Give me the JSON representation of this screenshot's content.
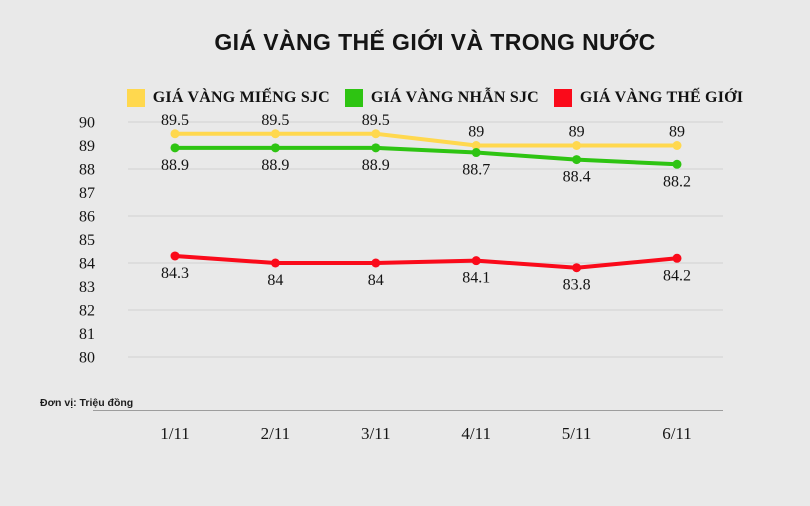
{
  "title": "GIÁ VÀNG THẾ GIỚI VÀ TRONG NƯỚC",
  "unit_note": "Đơn vị: Triệu đồng",
  "colors": {
    "background": "#e9e9e9",
    "gridline": "#d9d9d9",
    "text": "#151515",
    "gold_bar": "#ffd84e",
    "gold_ring": "#2ec412",
    "world_gold": "#fa0a1a"
  },
  "legend": [
    {
      "label": "GIÁ VÀNG MIẾNG SJC",
      "color": "#ffd84e"
    },
    {
      "label": "GIÁ VÀNG NHẪN SJC",
      "color": "#2ec412"
    },
    {
      "label": "GIÁ VÀNG THẾ GIỚI",
      "color": "#fa0a1a"
    }
  ],
  "chart_data": {
    "type": "line",
    "title": "GIÁ VÀNG THẾ GIỚI VÀ TRONG NƯỚC",
    "xlabel": "",
    "ylabel": "Triệu đồng",
    "categories": [
      "1/11",
      "2/11",
      "3/11",
      "4/11",
      "5/11",
      "6/11"
    ],
    "series": [
      {
        "name": "GIÁ VÀNG MIẾNG SJC",
        "color": "#ffd84e",
        "label_position": "above",
        "values": [
          89.5,
          89.5,
          89.5,
          89,
          89,
          89
        ]
      },
      {
        "name": "GIÁ VÀNG NHẪN SJC",
        "color": "#2ec412",
        "label_position": "below",
        "values": [
          88.9,
          88.9,
          88.9,
          88.7,
          88.4,
          88.2
        ]
      },
      {
        "name": "GIÁ VÀNG THẾ GIỚI",
        "color": "#fa0a1a",
        "label_position": "below",
        "values": [
          84.3,
          84,
          84,
          84.1,
          83.8,
          84.2
        ]
      }
    ],
    "ylim": [
      80,
      90
    ],
    "y_ticks": [
      80,
      81,
      82,
      83,
      84,
      85,
      86,
      87,
      88,
      89,
      90
    ],
    "gridline_values": [
      80,
      82,
      84,
      86,
      88,
      90
    ],
    "grid": true,
    "legend_position": "top",
    "data_labels": true
  }
}
